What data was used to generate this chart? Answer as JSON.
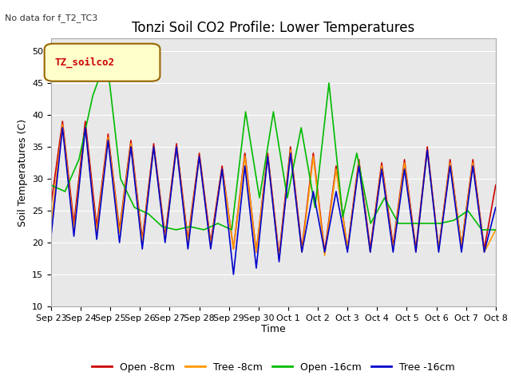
{
  "title": "Tonzi Soil CO2 Profile: Lower Temperatures",
  "subtitle": "No data for f_T2_TC3",
  "ylabel": "Soil Temperatures (C)",
  "xlabel": "Time",
  "legend_label": "TZ_soilco2",
  "ylim": [
    10,
    52
  ],
  "yticks": [
    10,
    15,
    20,
    25,
    30,
    35,
    40,
    45,
    50
  ],
  "x_labels": [
    "Sep 23",
    "Sep 24",
    "Sep 25",
    "Sep 26",
    "Sep 27",
    "Sep 28",
    "Sep 29",
    "Sep 30",
    "Oct 1",
    "Oct 2",
    "Oct 3",
    "Oct 4",
    "Oct 5",
    "Oct 6",
    "Oct 7",
    "Oct 8"
  ],
  "series": {
    "open_8cm": {
      "color": "#cc0000",
      "label": "Open -8cm",
      "values": [
        26,
        39,
        23,
        39,
        22.5,
        37,
        22,
        36,
        20.5,
        35.5,
        21,
        35.5,
        20.5,
        34,
        20,
        32,
        19,
        34,
        18.5,
        34,
        18,
        35,
        19,
        34,
        18.5,
        32,
        19,
        33,
        19,
        32.5,
        19.5,
        33,
        19,
        35,
        19,
        33,
        19.5,
        33,
        19,
        29
      ]
    },
    "tree_8cm": {
      "color": "#ff9900",
      "label": "Tree -8cm",
      "values": [
        23,
        38.5,
        22,
        38,
        21.5,
        36.5,
        21.5,
        35.5,
        20,
        35,
        20.5,
        35,
        20,
        33.5,
        19.5,
        31.5,
        19,
        33.5,
        18.5,
        33.5,
        17.5,
        34.5,
        18.5,
        33.5,
        18,
        31.5,
        19,
        32.5,
        18.5,
        32,
        19,
        32.5,
        18.5,
        34.5,
        19,
        32.5,
        19.5,
        32.5,
        18.5,
        22
      ]
    },
    "open_16cm": {
      "color": "#00bb00",
      "label": "Open -16cm",
      "values": [
        29,
        28,
        33,
        43,
        49,
        30,
        25.5,
        24.5,
        22.5,
        22,
        22.5,
        22,
        23,
        22,
        40.5,
        27,
        40.5,
        27,
        38,
        25.5,
        45,
        24,
        34,
        23,
        27,
        23,
        23,
        23,
        23,
        23.5,
        25,
        22,
        22
      ]
    },
    "tree_16cm": {
      "color": "#0000cc",
      "label": "Tree -16cm",
      "values": [
        21,
        38,
        21,
        38,
        20.5,
        36,
        20,
        35,
        19,
        35,
        20,
        35,
        19,
        33.5,
        19,
        31.5,
        15,
        32,
        16,
        33.5,
        17,
        34,
        18.5,
        28,
        18.5,
        28,
        18.5,
        32,
        18.5,
        31.5,
        18.5,
        31.5,
        18.5,
        34.5,
        18.5,
        32,
        18.5,
        32,
        18.5,
        25.5
      ]
    }
  },
  "fig_bg": "#ffffff",
  "ax_bg": "#e8e8e8",
  "grid_color": "#ffffff",
  "title_fontsize": 12,
  "axis_fontsize": 8,
  "tick_fontsize": 8,
  "legend_fontsize": 9
}
